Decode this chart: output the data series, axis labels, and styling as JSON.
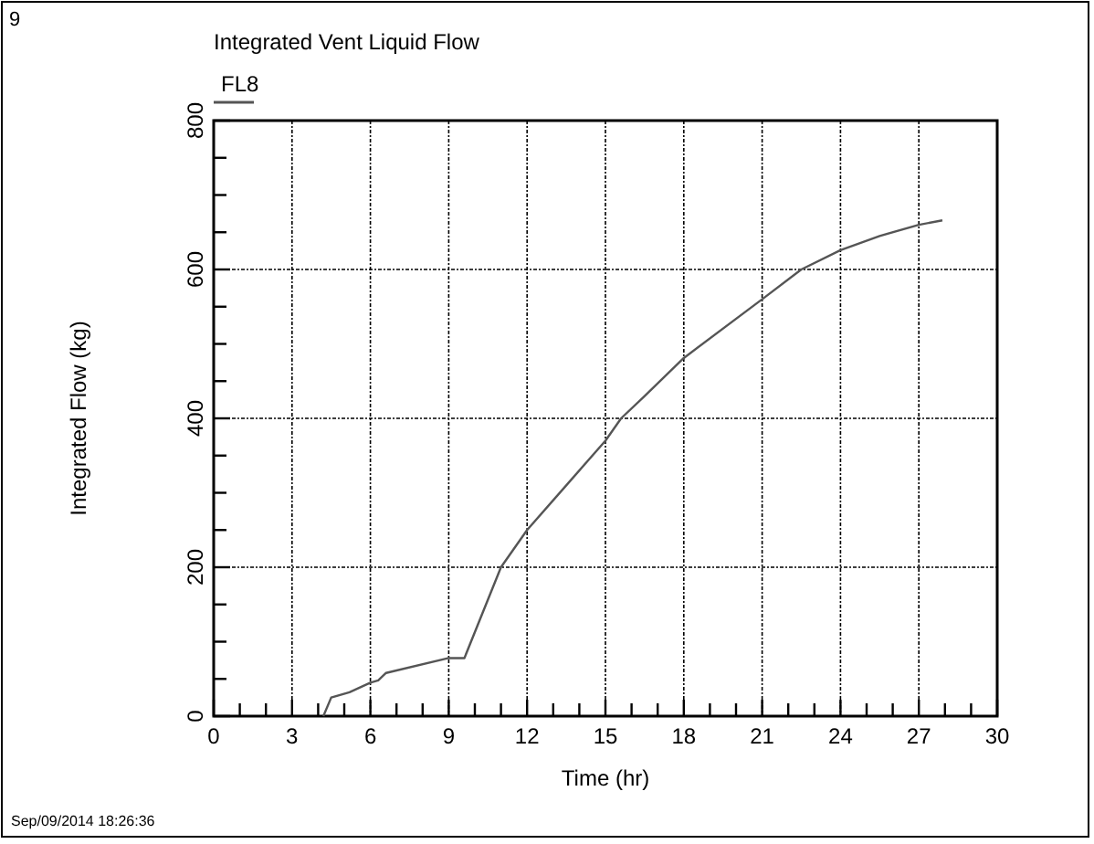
{
  "chart_data": {
    "type": "line",
    "title": "Integrated Vent Liquid Flow",
    "xlabel": "Time (hr)",
    "ylabel": "Integrated Flow (kg)",
    "annotations": [
      "9",
      "Sep/09/2014 18:26:36"
    ],
    "series": [
      {
        "name": "FL8",
        "color": "#555555",
        "x": [
          4.2,
          4.5,
          5.2,
          6,
          6.3,
          6.6,
          9,
          9.6,
          11,
          12,
          13.5,
          15,
          15.6,
          16.5,
          18,
          21,
          22.5,
          24,
          25.5,
          27,
          27.9
        ],
        "values": [
          0,
          25,
          32,
          45,
          48,
          58,
          78,
          78,
          200,
          250,
          310,
          370,
          400,
          430,
          481,
          560,
          600,
          626,
          645,
          660,
          666
        ]
      }
    ],
    "xlim": [
      0,
      30
    ],
    "xticks": [
      0,
      {
        "value": 1,
        "label": null
      },
      {
        "value": 2,
        "label": null
      },
      3,
      {
        "value": 4,
        "label": null
      },
      {
        "value": 5,
        "label": null
      },
      6,
      {
        "value": 7,
        "label": null
      },
      {
        "value": 8,
        "label": null
      },
      9,
      {
        "value": 10,
        "label": null
      },
      {
        "value": 11,
        "label": null
      },
      12,
      {
        "value": 13,
        "label": null
      },
      {
        "value": 14,
        "label": null
      },
      15,
      {
        "value": 16,
        "label": null
      },
      {
        "value": 17,
        "label": null
      },
      18,
      {
        "value": 19,
        "label": null
      },
      {
        "value": 20,
        "label": null
      },
      21,
      {
        "value": 22,
        "label": null
      },
      {
        "value": 23,
        "label": null
      },
      24,
      {
        "value": 25,
        "label": null
      },
      {
        "value": 26,
        "label": null
      },
      27,
      {
        "value": 28,
        "label": null
      },
      {
        "value": 29,
        "label": null
      },
      30
    ],
    "ylim": [
      0,
      800
    ],
    "yticks": [
      0,
      {
        "value": 50,
        "label": null
      },
      {
        "value": 100,
        "label": null
      },
      {
        "value": 150,
        "label": null
      },
      200,
      {
        "value": 250,
        "label": null
      },
      {
        "value": 300,
        "label": null
      },
      {
        "value": 350,
        "label": null
      },
      400,
      {
        "value": 450,
        "label": null
      },
      {
        "value": 500,
        "label": null
      },
      {
        "value": 550,
        "label": null
      },
      600,
      {
        "value": 650,
        "label": null
      },
      {
        "value": 700,
        "label": null
      },
      {
        "value": 750,
        "label": null
      },
      800
    ],
    "grid": true,
    "legend": "top left",
    "marker": "none",
    "line_style": "solid"
  }
}
